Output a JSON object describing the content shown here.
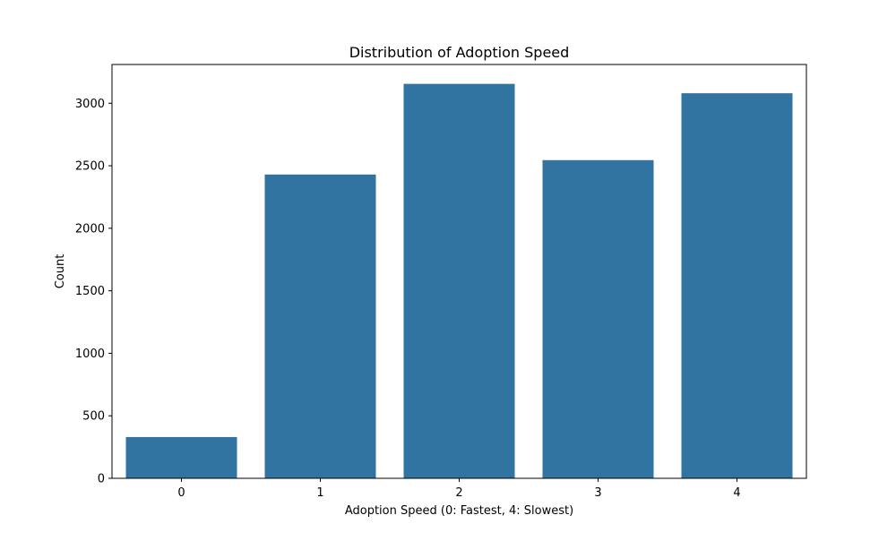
{
  "chart_data": {
    "type": "bar",
    "title": "Distribution of Adoption Speed",
    "xlabel": "Adoption Speed (0: Fastest, 4: Slowest)",
    "ylabel": "Count",
    "categories": [
      "0",
      "1",
      "2",
      "3",
      "4"
    ],
    "values": [
      330,
      2430,
      3155,
      2545,
      3080
    ],
    "ylim": [
      0,
      3310
    ],
    "yticks": [
      0,
      500,
      1000,
      1500,
      2000,
      2500,
      3000
    ],
    "ytick_labels": [
      "0",
      "500",
      "1000",
      "1500",
      "2000",
      "2500",
      "3000"
    ],
    "grid": false,
    "legend": "none",
    "bar_color": "#3274a1"
  }
}
